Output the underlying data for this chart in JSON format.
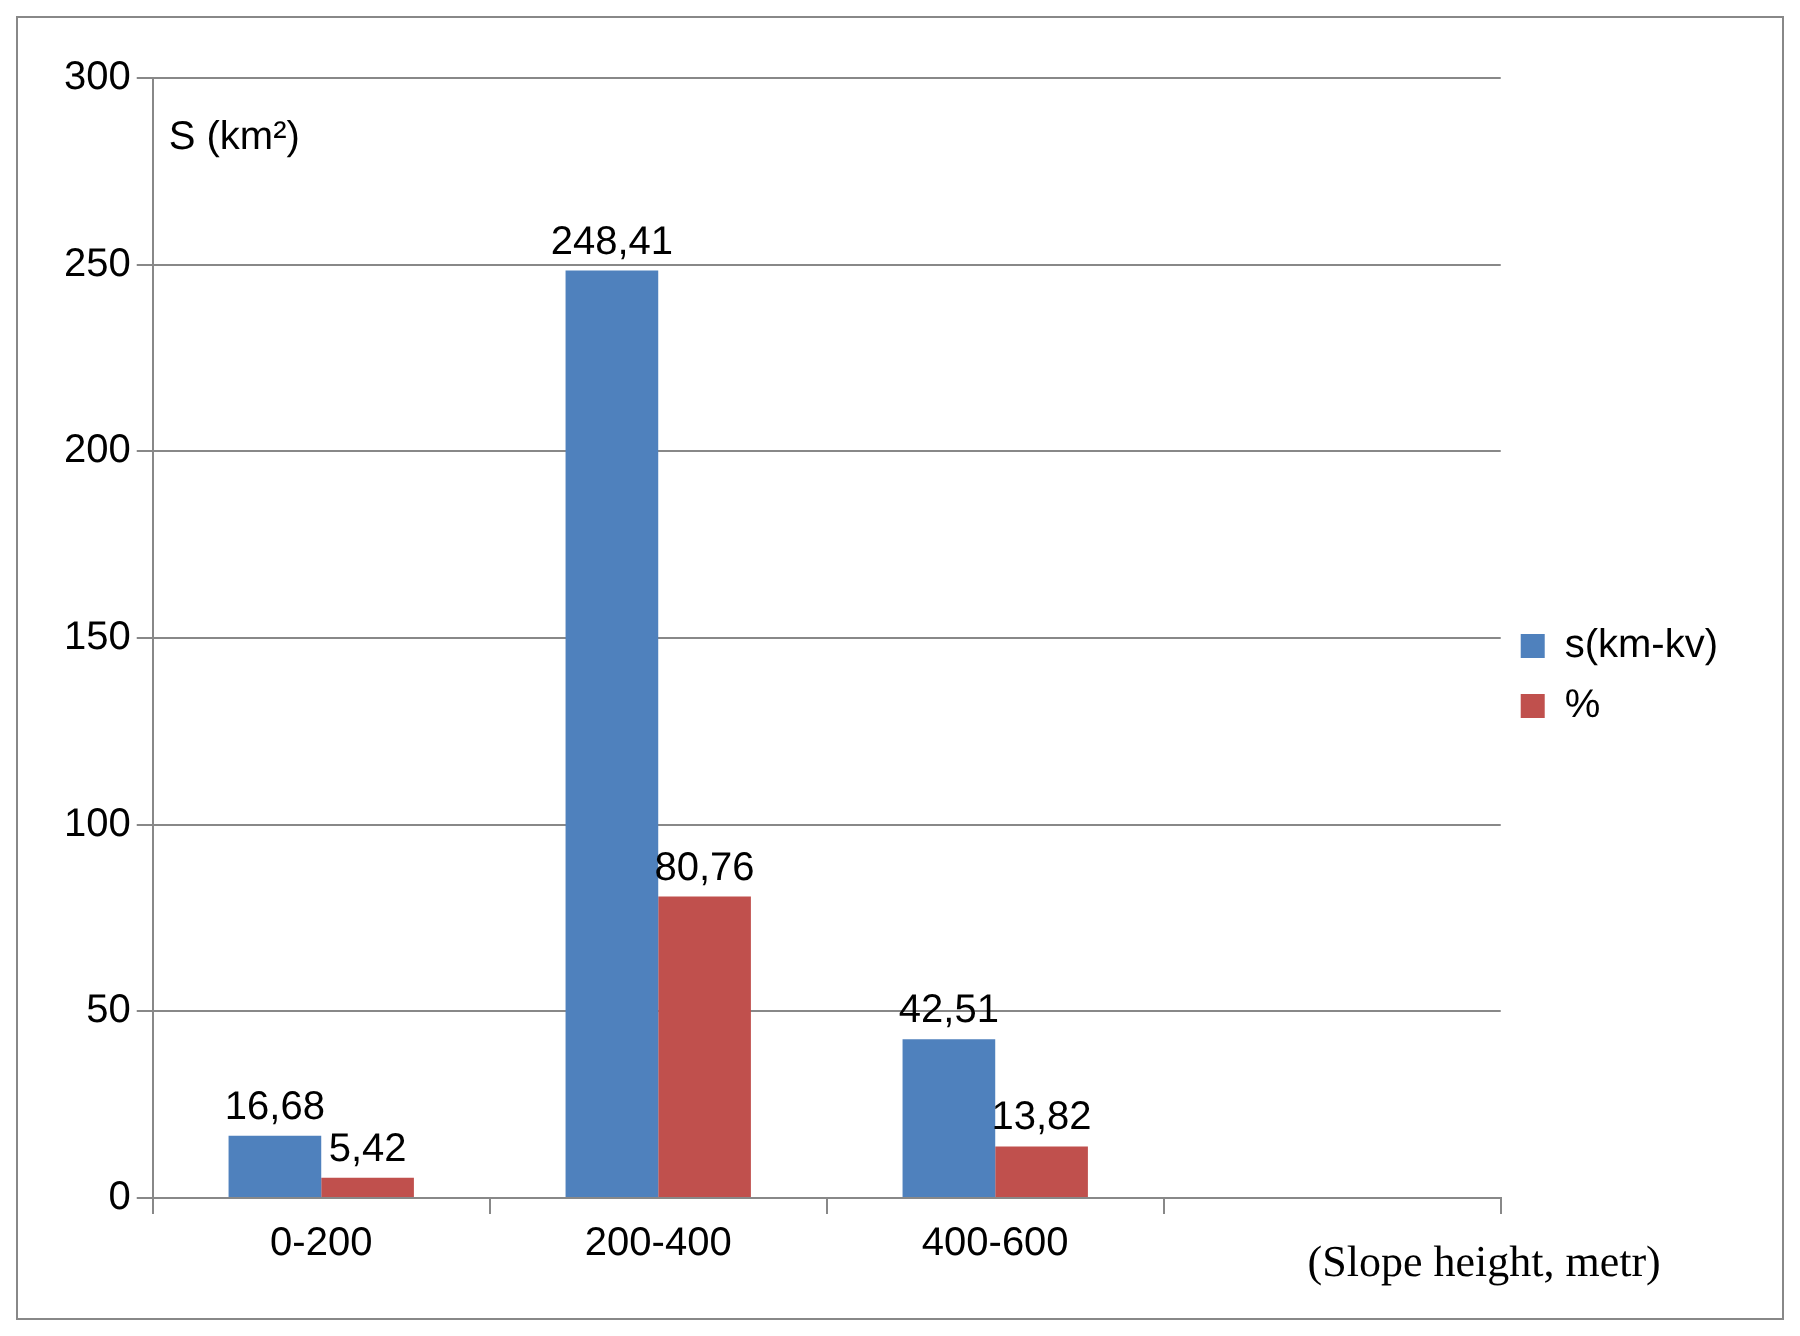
{
  "chart_data": {
    "type": "bar",
    "ylabel": "S (km²)",
    "xlabel": "(Slope height, metr)",
    "categories": [
      "0-200",
      "200-400",
      "400-600",
      null
    ],
    "series": [
      {
        "name": "s(km-kv)",
        "color": "#4f81bd",
        "values": [
          16.68,
          248.41,
          42.51,
          null
        ],
        "value_labels": [
          "16,68",
          "248,41",
          "42,51",
          null
        ]
      },
      {
        "name": "%",
        "color": "#c0504d",
        "values": [
          5.42,
          80.76,
          13.82,
          null
        ],
        "value_labels": [
          "5,42",
          "80,76",
          "13,82",
          null
        ]
      }
    ],
    "ylim": [
      0,
      300
    ],
    "yticks": [
      0,
      50,
      100,
      150,
      200,
      250,
      300
    ],
    "grid": "y",
    "legend": "right"
  }
}
